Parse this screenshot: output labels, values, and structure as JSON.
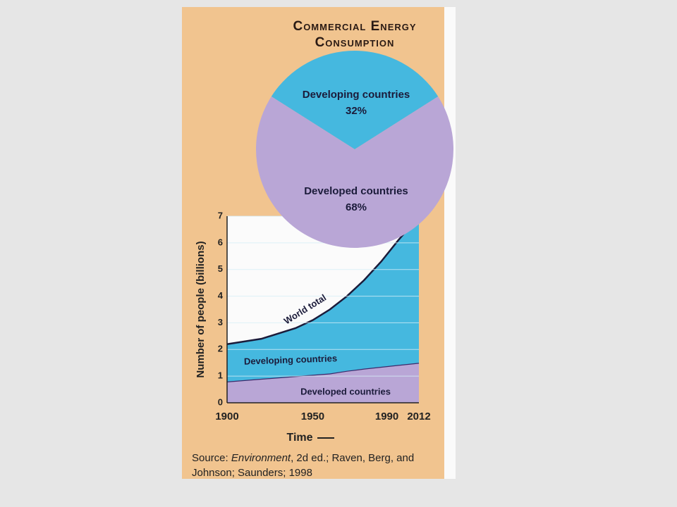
{
  "chart_data": [
    {
      "type": "pie",
      "title": "Commercial Energy Consumption",
      "categories": [
        "Developing countries",
        "Developed countries"
      ],
      "values": [
        32,
        68
      ],
      "value_labels": [
        "32%",
        "68%"
      ],
      "colors": [
        "#45b8df",
        "#b9a6d6"
      ]
    },
    {
      "type": "stacked-area",
      "y_label": "Number of people (billions)",
      "x_label": "Time",
      "x": [
        1900,
        1920,
        1940,
        1950,
        1960,
        1970,
        1980,
        1990,
        2000,
        2012
      ],
      "series": [
        {
          "name": "Developed countries",
          "color": "#b9a6d6",
          "values": [
            0.8,
            0.9,
            1.0,
            1.05,
            1.1,
            1.2,
            1.28,
            1.35,
            1.42,
            1.5
          ]
        },
        {
          "name": "Developing countries",
          "color": "#45b8df",
          "values": [
            1.4,
            1.5,
            1.8,
            2.05,
            2.4,
            2.8,
            3.32,
            3.95,
            4.68,
            5.5
          ]
        }
      ],
      "annotations": [
        "World total"
      ],
      "xlim": [
        1900,
        2012
      ],
      "xticks": [
        1900,
        1950,
        1990,
        2012
      ],
      "ylim": [
        0,
        7
      ],
      "yticks": [
        0,
        1,
        2,
        3,
        4,
        5,
        6,
        7
      ],
      "grid": true
    }
  ],
  "source": {
    "prefix": "Source: ",
    "title": "Environment",
    "rest": ", 2d ed.; Raven, Berg, and Johnson; Saunders; 1998"
  }
}
